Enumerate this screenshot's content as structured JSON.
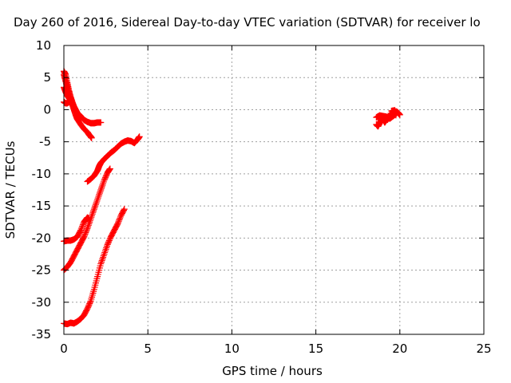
{
  "chart_data": {
    "type": "scatter",
    "title": "Day 260 of 2016, Sidereal Day-to-day VTEC variation (SDTVAR) for receiver lo",
    "xlabel": "GPS time / hours",
    "ylabel": "SDTVAR / TECUs",
    "xlim": [
      0,
      25
    ],
    "ylim": [
      -35,
      10
    ],
    "xticks": [
      0,
      5,
      10,
      15,
      20,
      25
    ],
    "yticks": [
      10,
      5,
      0,
      -5,
      -10,
      -15,
      -20,
      -25,
      -30,
      -35
    ],
    "grid": true,
    "marker": "plus",
    "color": "#ff0000",
    "series": [
      {
        "points": [
          [
            0.0,
            6.0
          ],
          [
            0.1,
            5.5
          ],
          [
            0.2,
            4.2
          ],
          [
            0.3,
            3.0
          ],
          [
            0.4,
            2.0
          ],
          [
            0.5,
            1.2
          ],
          [
            0.6,
            0.5
          ],
          [
            0.7,
            0.0
          ],
          [
            0.8,
            -0.5
          ],
          [
            1.0,
            -1.0
          ],
          [
            1.2,
            -1.6
          ],
          [
            1.4,
            -1.9
          ],
          [
            1.6,
            -2.1
          ],
          [
            1.8,
            -2.1
          ],
          [
            2.0,
            -2.0
          ],
          [
            2.2,
            -2.0
          ]
        ]
      },
      {
        "points": [
          [
            0.0,
            5.5
          ],
          [
            0.1,
            4.5
          ],
          [
            0.2,
            3.5
          ],
          [
            0.3,
            2.5
          ],
          [
            0.4,
            1.5
          ],
          [
            0.5,
            0.8
          ],
          [
            0.6,
            0.0
          ],
          [
            0.7,
            -0.8
          ],
          [
            0.8,
            -1.5
          ],
          [
            1.0,
            -2.3
          ],
          [
            1.2,
            -3.0
          ],
          [
            1.4,
            -3.5
          ],
          [
            1.5,
            -3.9
          ],
          [
            1.6,
            -4.2
          ],
          [
            1.65,
            -4.4
          ]
        ]
      },
      {
        "points": [
          [
            0.0,
            3.5
          ],
          [
            0.1,
            2.8
          ],
          [
            0.2,
            2.2
          ],
          [
            0.3,
            1.8
          ],
          [
            0.4,
            1.5
          ]
        ]
      },
      {
        "points": [
          [
            0.0,
            1.2
          ],
          [
            0.1,
            1.0
          ],
          [
            0.2,
            1.0
          ],
          [
            0.3,
            1.2
          ],
          [
            0.4,
            1.1
          ],
          [
            0.5,
            0.8
          ]
        ]
      },
      {
        "points": [
          [
            1.4,
            -11.2
          ],
          [
            1.6,
            -10.8
          ],
          [
            1.8,
            -10.3
          ],
          [
            2.0,
            -9.5
          ],
          [
            2.1,
            -8.8
          ],
          [
            2.2,
            -8.3
          ],
          [
            2.4,
            -7.7
          ],
          [
            2.6,
            -7.2
          ],
          [
            2.8,
            -6.7
          ],
          [
            3.0,
            -6.3
          ],
          [
            3.2,
            -5.8
          ],
          [
            3.4,
            -5.3
          ],
          [
            3.6,
            -5.0
          ],
          [
            3.8,
            -4.8
          ],
          [
            4.0,
            -4.9
          ],
          [
            4.2,
            -5.2
          ],
          [
            4.4,
            -4.6
          ],
          [
            4.5,
            -4.2
          ]
        ]
      },
      {
        "points": [
          [
            0.0,
            -20.5
          ],
          [
            0.2,
            -20.4
          ],
          [
            0.4,
            -20.4
          ],
          [
            0.6,
            -20.2
          ],
          [
            0.8,
            -19.8
          ],
          [
            1.0,
            -18.8
          ],
          [
            1.2,
            -17.5
          ],
          [
            1.4,
            -16.8
          ],
          [
            1.5,
            -17.0
          ]
        ]
      },
      {
        "points": [
          [
            0.0,
            -25.0
          ],
          [
            0.2,
            -24.5
          ],
          [
            0.4,
            -23.8
          ],
          [
            0.6,
            -22.8
          ],
          [
            0.8,
            -21.8
          ],
          [
            1.0,
            -20.8
          ],
          [
            1.2,
            -19.8
          ],
          [
            1.4,
            -18.5
          ],
          [
            1.6,
            -17.0
          ],
          [
            1.8,
            -15.5
          ],
          [
            2.0,
            -14.0
          ],
          [
            2.2,
            -12.5
          ],
          [
            2.4,
            -11.0
          ],
          [
            2.6,
            -9.8
          ],
          [
            2.75,
            -9.2
          ]
        ]
      },
      {
        "points": [
          [
            0.0,
            -33.3
          ],
          [
            0.2,
            -33.4
          ],
          [
            0.4,
            -33.2
          ],
          [
            0.6,
            -33.3
          ],
          [
            0.8,
            -33.0
          ],
          [
            1.0,
            -32.6
          ],
          [
            1.2,
            -32.0
          ],
          [
            1.4,
            -31.0
          ],
          [
            1.6,
            -29.8
          ],
          [
            1.8,
            -28.0
          ],
          [
            2.0,
            -26.0
          ],
          [
            2.2,
            -24.0
          ],
          [
            2.4,
            -22.5
          ],
          [
            2.6,
            -21.0
          ],
          [
            2.8,
            -19.8
          ],
          [
            3.0,
            -18.8
          ],
          [
            3.2,
            -17.8
          ],
          [
            3.4,
            -16.5
          ],
          [
            3.6,
            -15.5
          ]
        ]
      },
      {
        "points": [
          [
            18.6,
            -2.3
          ],
          [
            18.7,
            -2.6
          ],
          [
            18.8,
            -2.1
          ],
          [
            18.9,
            -1.5
          ],
          [
            19.0,
            -1.5
          ],
          [
            19.1,
            -2.0
          ],
          [
            19.2,
            -1.6
          ],
          [
            19.3,
            -1.2
          ],
          [
            19.4,
            -0.9
          ],
          [
            19.5,
            -0.6
          ],
          [
            19.6,
            -0.4
          ],
          [
            19.7,
            -0.3
          ],
          [
            19.8,
            -0.3
          ],
          [
            19.9,
            -0.5
          ],
          [
            20.0,
            -0.8
          ],
          [
            18.6,
            -1.2
          ],
          [
            18.8,
            -0.9
          ],
          [
            19.0,
            -1.0
          ],
          [
            19.2,
            -1.1
          ],
          [
            19.4,
            -1.4
          ],
          [
            19.6,
            -1.0
          ],
          [
            19.8,
            -0.6
          ],
          [
            19.5,
            -0.2
          ],
          [
            19.7,
            -0.1
          ]
        ]
      }
    ]
  }
}
